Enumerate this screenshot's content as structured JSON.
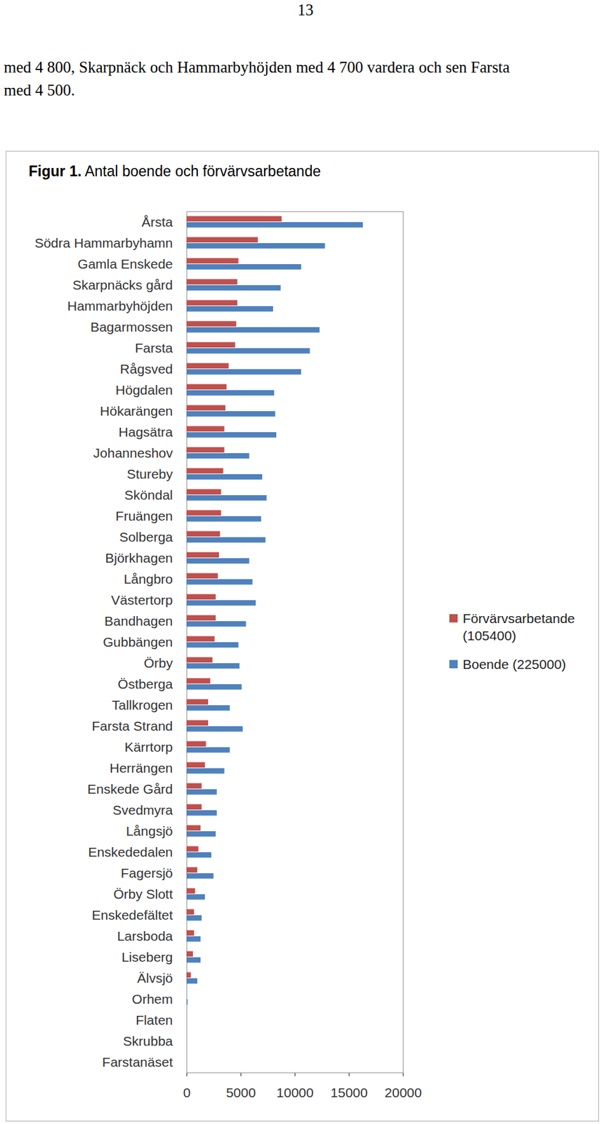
{
  "page": {
    "page_number": "13",
    "text_lines": [
      "med 4 800, Skarpnäck och Hammarbyhöjden med 4 700 vardera och sen Farsta",
      "med 4 500."
    ]
  },
  "chart_data": {
    "type": "bar",
    "orientation": "horizontal",
    "figure_label": "Figur 1.",
    "title": "Antal boende och förvärvsarbetande",
    "categories": [
      "Årsta",
      "Södra Hammarbyhamn",
      "Gamla Enskede",
      "Skarpnäcks gård",
      "Hammarbyhöjden",
      "Bagarmossen",
      "Farsta",
      "Rågsved",
      "Högdalen",
      "Hökarängen",
      "Hagsätra",
      "Johanneshov",
      "Stureby",
      "Sköndal",
      "Fruängen",
      "Solberga",
      "Björkhagen",
      "Långbro",
      "Västertorp",
      "Bandhagen",
      "Gubbängen",
      "Örby",
      "Östberga",
      "Tallkrogen",
      "Farsta Strand",
      "Kärrtorp",
      "Herrängen",
      "Enskede Gård",
      "Svedmyra",
      "Långsjö",
      "Enskededalen",
      "Fagersjö",
      "Örby Slott",
      "Enskedefältet",
      "Larsboda",
      "Liseberg",
      "Älvsjö",
      "Orhem",
      "Flaten",
      "Skrubba",
      "Farstanäset"
    ],
    "series": [
      {
        "name": "Förvärvsarbetande (105400)",
        "color": "#c0504d",
        "values": [
          8800,
          6600,
          4800,
          4700,
          4700,
          4600,
          4500,
          3900,
          3700,
          3600,
          3500,
          3500,
          3400,
          3200,
          3200,
          3100,
          3000,
          2900,
          2700,
          2700,
          2600,
          2400,
          2200,
          2000,
          2000,
          1800,
          1700,
          1400,
          1400,
          1300,
          1100,
          1000,
          800,
          700,
          700,
          600,
          400,
          0,
          0,
          0,
          0
        ]
      },
      {
        "name": "Boende (225000)",
        "color": "#4f81bd",
        "values": [
          16300,
          12800,
          10600,
          8700,
          8000,
          12300,
          11400,
          10600,
          8100,
          8200,
          8300,
          5800,
          7000,
          7400,
          6900,
          7300,
          5800,
          6100,
          6400,
          5500,
          4800,
          4900,
          5100,
          4000,
          5200,
          4000,
          3500,
          2800,
          2800,
          2700,
          2300,
          2500,
          1700,
          1400,
          1300,
          1300,
          1000,
          100,
          0,
          0,
          0
        ]
      }
    ],
    "xlim": [
      0,
      20000
    ],
    "xticks": [
      0,
      5000,
      10000,
      15000,
      20000
    ],
    "grid": false,
    "legend": "right"
  }
}
